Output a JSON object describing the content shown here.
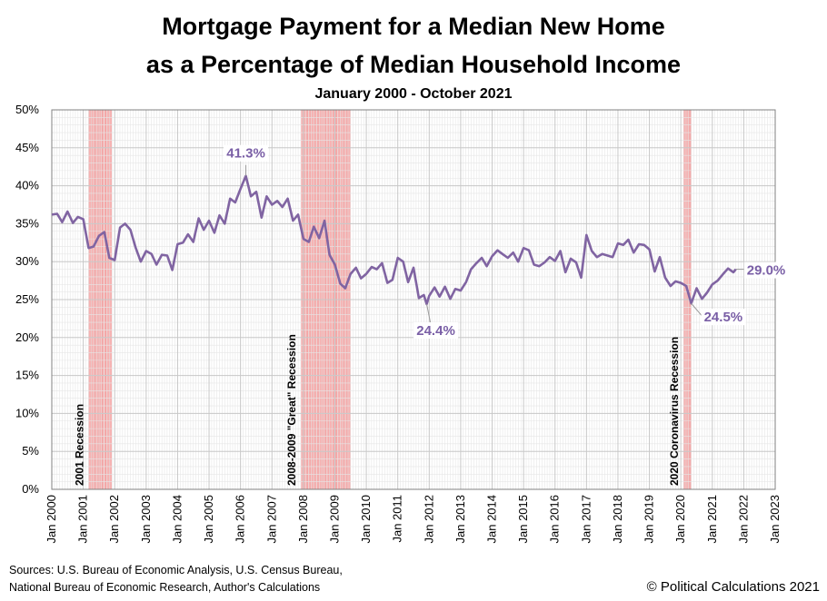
{
  "chart_data": {
    "type": "line",
    "title_lines": [
      "Mortgage Payment for a Median New Home",
      "as a Percentage of Median Household Income"
    ],
    "subtitle": "January 2000 - October 2021",
    "xlabel": "",
    "ylabel": "",
    "xlim": [
      2000,
      2023
    ],
    "ylim": [
      0,
      50
    ],
    "y_ticks": [
      "0%",
      "5%",
      "10%",
      "15%",
      "20%",
      "25%",
      "30%",
      "35%",
      "40%",
      "45%",
      "50%"
    ],
    "x_ticks": [
      "Jan 2000",
      "Jan 2001",
      "Jan 2002",
      "Jan 2003",
      "Jan 2004",
      "Jan 2005",
      "Jan 2006",
      "Jan 2007",
      "Jan 2008",
      "Jan 2009",
      "Jan 2010",
      "Jan 2011",
      "Jan 2012",
      "Jan 2013",
      "Jan 2014",
      "Jan 2015",
      "Jan 2016",
      "Jan 2017",
      "Jan 2018",
      "Jan 2019",
      "Jan 2020",
      "Jan 2021",
      "Jan 2022",
      "Jan 2023"
    ],
    "grid": true,
    "line_color": "#8064a2",
    "recession_color": "#f4a6a6",
    "recessions": [
      {
        "start": 2001.17,
        "end": 2001.92,
        "label": "2001 Recession"
      },
      {
        "start": 2007.92,
        "end": 2009.5,
        "label": "2008-2009 \"Great\" Recession"
      },
      {
        "start": 2020.08,
        "end": 2020.33,
        "label": "2020 Coronavirus Recession"
      }
    ],
    "annotations": [
      {
        "x": 2006.17,
        "y": 41.3,
        "label": "41.3%"
      },
      {
        "x": 2011.92,
        "y": 24.4,
        "label": "24.4%"
      },
      {
        "x": 2020.33,
        "y": 24.5,
        "label": "24.5%"
      },
      {
        "x": 2021.75,
        "y": 29.0,
        "label": "29.0%"
      }
    ],
    "series": [
      {
        "x": [
          2000.0,
          2000.17,
          2000.33,
          2000.5,
          2000.67,
          2000.83,
          2001.0,
          2001.17,
          2001.33,
          2001.5,
          2001.67,
          2001.83,
          2002.0,
          2002.17,
          2002.33,
          2002.5,
          2002.67,
          2002.83,
          2003.0,
          2003.17,
          2003.33,
          2003.5,
          2003.67,
          2003.83,
          2004.0,
          2004.17,
          2004.33,
          2004.5,
          2004.67,
          2004.83,
          2005.0,
          2005.17,
          2005.33,
          2005.5,
          2005.67,
          2005.83,
          2006.0,
          2006.17,
          2006.33,
          2006.5,
          2006.67,
          2006.83,
          2007.0,
          2007.17,
          2007.33,
          2007.5,
          2007.67,
          2007.83,
          2008.0,
          2008.17,
          2008.33,
          2008.5,
          2008.67,
          2008.83,
          2009.0,
          2009.17,
          2009.33,
          2009.5,
          2009.67,
          2009.83,
          2010.0,
          2010.17,
          2010.33,
          2010.5,
          2010.67,
          2010.83,
          2011.0,
          2011.17,
          2011.33,
          2011.5,
          2011.67,
          2011.83,
          2011.92,
          2012.0,
          2012.17,
          2012.33,
          2012.5,
          2012.67,
          2012.83,
          2013.0,
          2013.17,
          2013.33,
          2013.5,
          2013.67,
          2013.83,
          2014.0,
          2014.17,
          2014.33,
          2014.5,
          2014.67,
          2014.83,
          2015.0,
          2015.17,
          2015.33,
          2015.5,
          2015.67,
          2015.83,
          2016.0,
          2016.17,
          2016.33,
          2016.5,
          2016.67,
          2016.83,
          2017.0,
          2017.17,
          2017.33,
          2017.5,
          2017.67,
          2017.83,
          2018.0,
          2018.17,
          2018.33,
          2018.5,
          2018.67,
          2018.83,
          2019.0,
          2019.17,
          2019.33,
          2019.5,
          2019.67,
          2019.83,
          2020.0,
          2020.17,
          2020.33,
          2020.5,
          2020.67,
          2020.83,
          2021.0,
          2021.17,
          2021.33,
          2021.5,
          2021.67,
          2021.75
        ],
        "y": [
          36.2,
          36.3,
          35.2,
          36.6,
          35.1,
          35.9,
          35.6,
          31.8,
          32.0,
          33.4,
          33.9,
          30.5,
          30.2,
          34.5,
          35.0,
          34.2,
          31.8,
          30.0,
          31.4,
          31.0,
          29.6,
          30.9,
          30.8,
          28.9,
          32.3,
          32.5,
          33.6,
          32.6,
          35.7,
          34.2,
          35.4,
          33.8,
          36.1,
          35.0,
          38.3,
          37.8,
          39.6,
          41.3,
          38.6,
          39.2,
          35.8,
          38.6,
          37.5,
          38.0,
          37.2,
          38.3,
          35.4,
          36.2,
          33.0,
          32.6,
          34.6,
          33.1,
          35.4,
          30.9,
          29.6,
          27.1,
          26.5,
          28.4,
          29.2,
          27.8,
          28.4,
          29.3,
          29.0,
          29.8,
          27.2,
          27.6,
          30.5,
          30.0,
          27.3,
          29.2,
          25.2,
          25.6,
          24.4,
          25.5,
          26.6,
          25.4,
          26.7,
          25.1,
          26.4,
          26.2,
          27.3,
          29.0,
          29.8,
          30.5,
          29.4,
          30.7,
          31.5,
          31.0,
          30.5,
          31.2,
          30.0,
          31.8,
          31.5,
          29.6,
          29.4,
          29.9,
          30.6,
          30.1,
          31.4,
          28.6,
          30.4,
          29.9,
          27.9,
          33.5,
          31.4,
          30.6,
          31.0,
          30.8,
          30.6,
          32.4,
          32.2,
          32.9,
          31.2,
          32.3,
          32.2,
          31.6,
          28.7,
          30.6,
          27.9,
          26.8,
          27.4,
          27.2,
          26.8,
          24.5,
          26.5,
          25.1,
          25.9,
          27.0,
          27.5,
          28.3,
          29.1,
          28.6,
          29.0
        ]
      }
    ]
  },
  "footer": {
    "sources_line1": "Sources: U.S. Bureau of Economic Analysis, U.S. Census Bureau,",
    "sources_line2": "National Bureau of Economic Research, Author's Calculations",
    "copyright": "© Political Calculations 2021"
  }
}
